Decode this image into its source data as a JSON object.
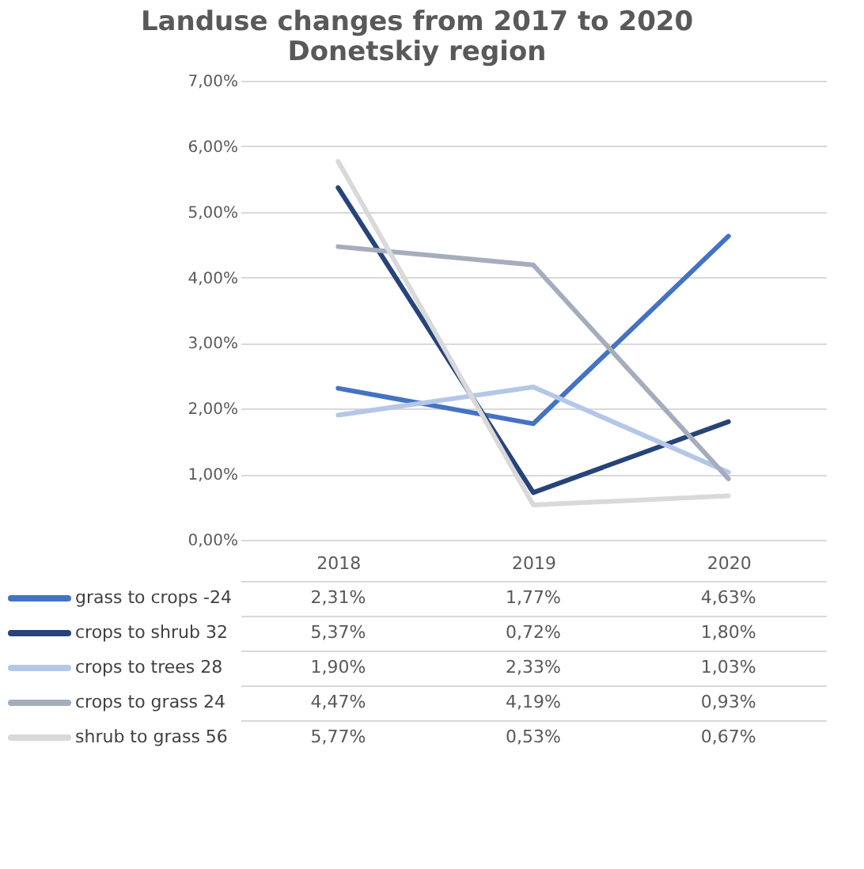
{
  "chart_data": {
    "type": "line",
    "title": [
      "Landuse changes from 2017 to 2020",
      "Donetskiy region"
    ],
    "categories": [
      "2018",
      "2019",
      "2020"
    ],
    "series": [
      {
        "name": "grass to crops -24",
        "color": "#4472c4",
        "values": [
          2.31,
          1.77,
          4.63
        ],
        "value_labels": [
          "2,31%",
          "1,77%",
          "4,63%"
        ]
      },
      {
        "name": "crops to shrub 32",
        "color": "#264478",
        "values": [
          5.37,
          0.72,
          1.8
        ],
        "value_labels": [
          "5,37%",
          "0,72%",
          "1,80%"
        ]
      },
      {
        "name": "crops to trees 28",
        "color": "#b4c7e7",
        "values": [
          1.9,
          2.33,
          1.03
        ],
        "value_labels": [
          "1,90%",
          "2,33%",
          "1,03%"
        ]
      },
      {
        "name": "crops to grass 24",
        "color": "#a5adbd",
        "values": [
          4.47,
          4.19,
          0.93
        ],
        "value_labels": [
          "4,47%",
          "4,19%",
          "0,93%"
        ]
      },
      {
        "name": "shrub to grass 56",
        "color": "#d9d9d9",
        "values": [
          5.77,
          0.53,
          0.67
        ],
        "value_labels": [
          "5,77%",
          "0,53%",
          "0,67%"
        ]
      }
    ],
    "ylim": [
      0,
      7
    ],
    "yticks": [
      {
        "value": 0,
        "label": "0,00%"
      },
      {
        "value": 1,
        "label": "1,00%"
      },
      {
        "value": 2,
        "label": "2,00%"
      },
      {
        "value": 3,
        "label": "3,00%"
      },
      {
        "value": 4,
        "label": "4,00%"
      },
      {
        "value": 5,
        "label": "5,00%"
      },
      {
        "value": 6,
        "label": "6,00%"
      },
      {
        "value": 7,
        "label": "7,00%"
      }
    ],
    "grid": "y",
    "legend": "bottom",
    "marker": "none",
    "line_style": "solid"
  }
}
